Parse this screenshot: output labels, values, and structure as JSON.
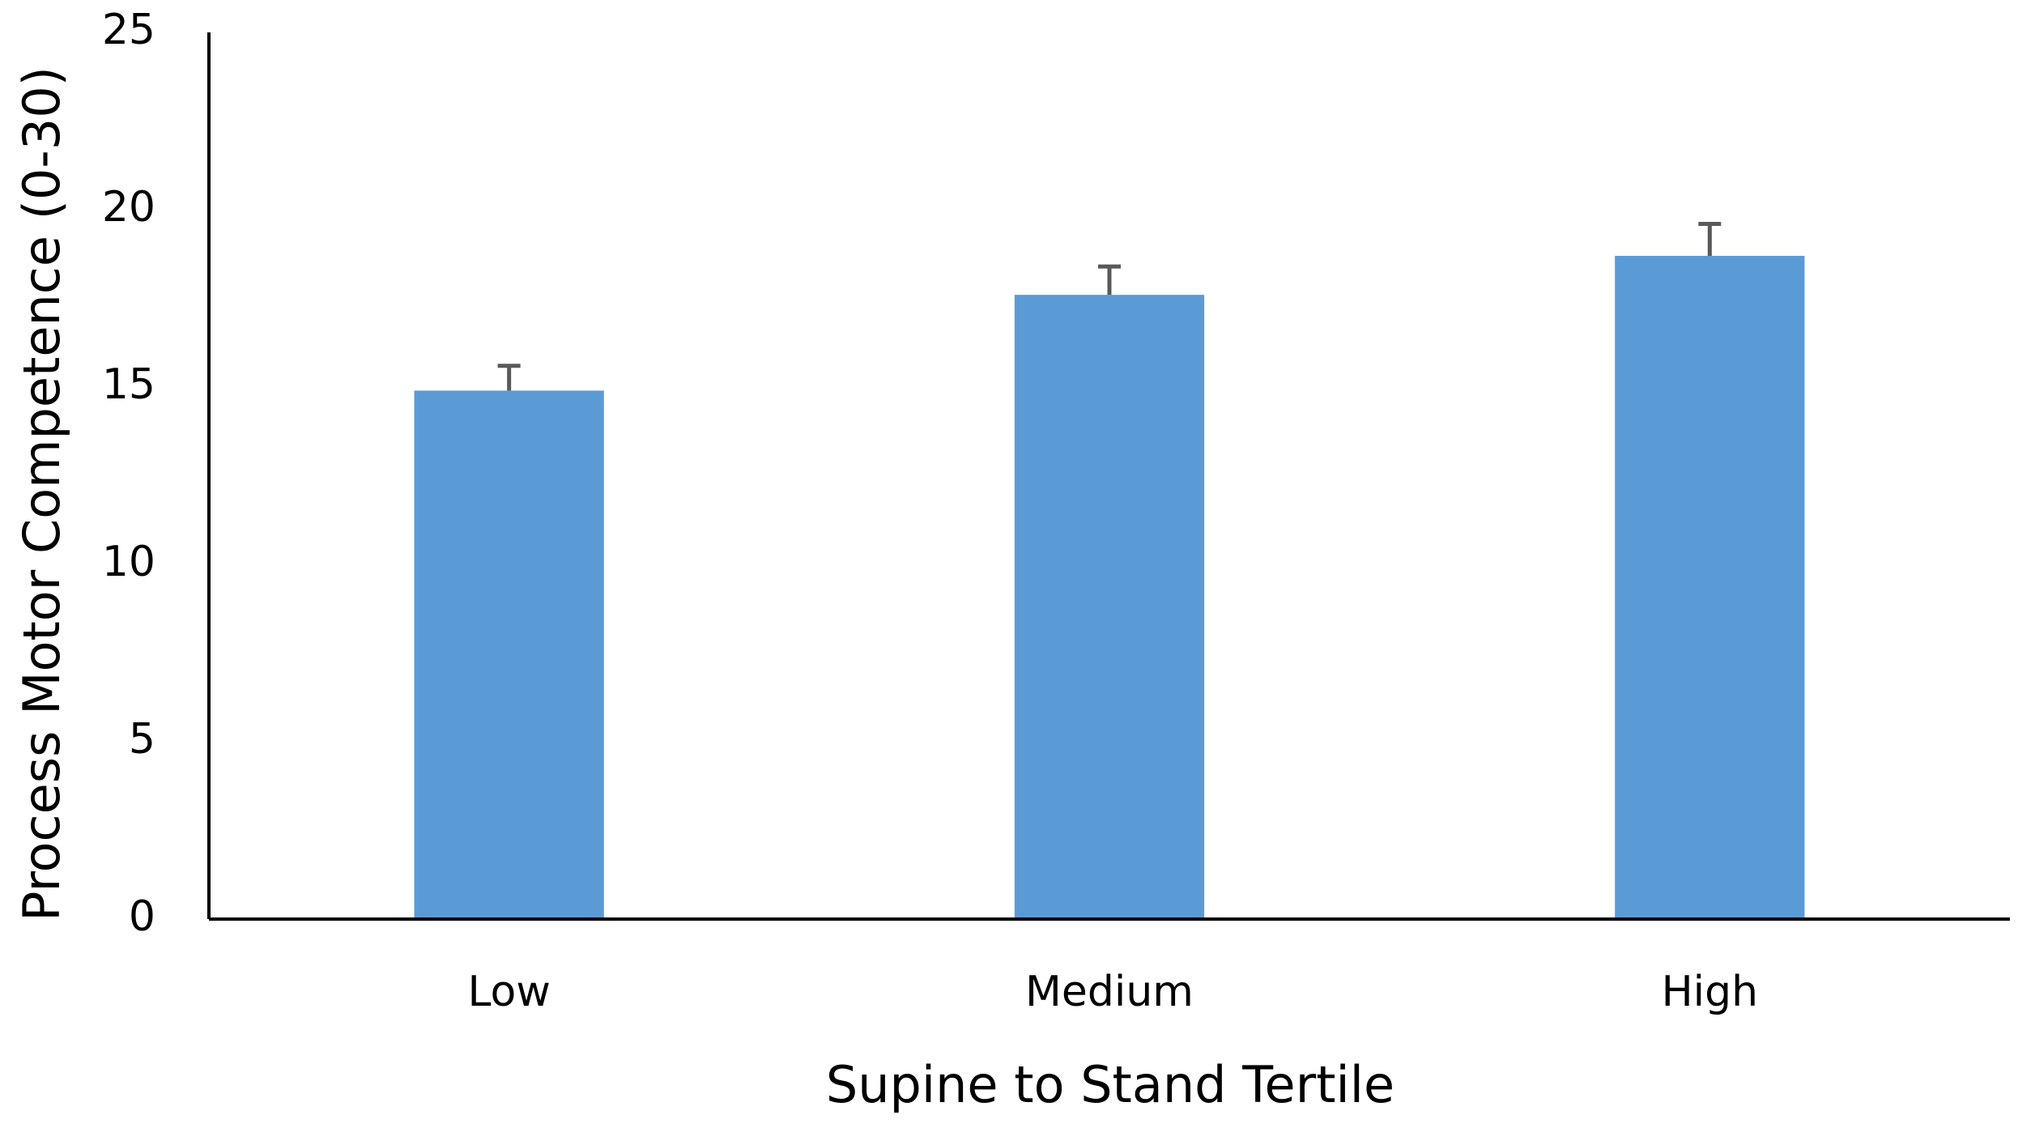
{
  "chart_data": {
    "type": "bar",
    "x_label": "Supine to Stand Tertile",
    "y_label": "Process Motor Competence (0-30)",
    "categories": [
      "Low",
      "Medium",
      "High"
    ],
    "series": [
      {
        "values": [
          14.9,
          17.6,
          18.7
        ],
        "errors": [
          0.7,
          0.8,
          0.9
        ],
        "color": "#5b9bd5"
      }
    ],
    "ylim": [
      0,
      25
    ],
    "yticks": [
      0,
      5,
      10,
      15,
      20,
      25
    ],
    "grid": false
  }
}
